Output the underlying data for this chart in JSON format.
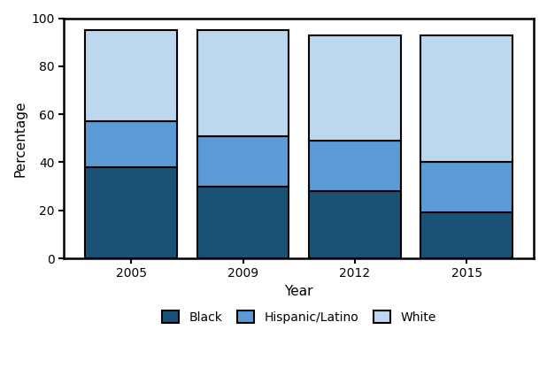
{
  "years": [
    "2005",
    "2009",
    "2012",
    "2015"
  ],
  "black": [
    38,
    30,
    28,
    19
  ],
  "hispanic": [
    19,
    21,
    21,
    21
  ],
  "white": [
    38,
    44,
    44,
    53
  ],
  "color_black": "#1a5276",
  "color_hispanic": "#5b9bd5",
  "color_white": "#bdd7ee",
  "bar_width": 0.82,
  "ylim": [
    0,
    100
  ],
  "yticks": [
    0,
    20,
    40,
    60,
    80,
    100
  ],
  "xlabel": "Year",
  "ylabel": "Percentage",
  "legend_labels": [
    "Black",
    "Hispanic/Latino",
    "White"
  ],
  "edgecolor": "#000000",
  "edgewidth": 1.5,
  "background_color": "#ffffff",
  "axis_fontsize": 11,
  "tick_fontsize": 10,
  "legend_fontsize": 10
}
